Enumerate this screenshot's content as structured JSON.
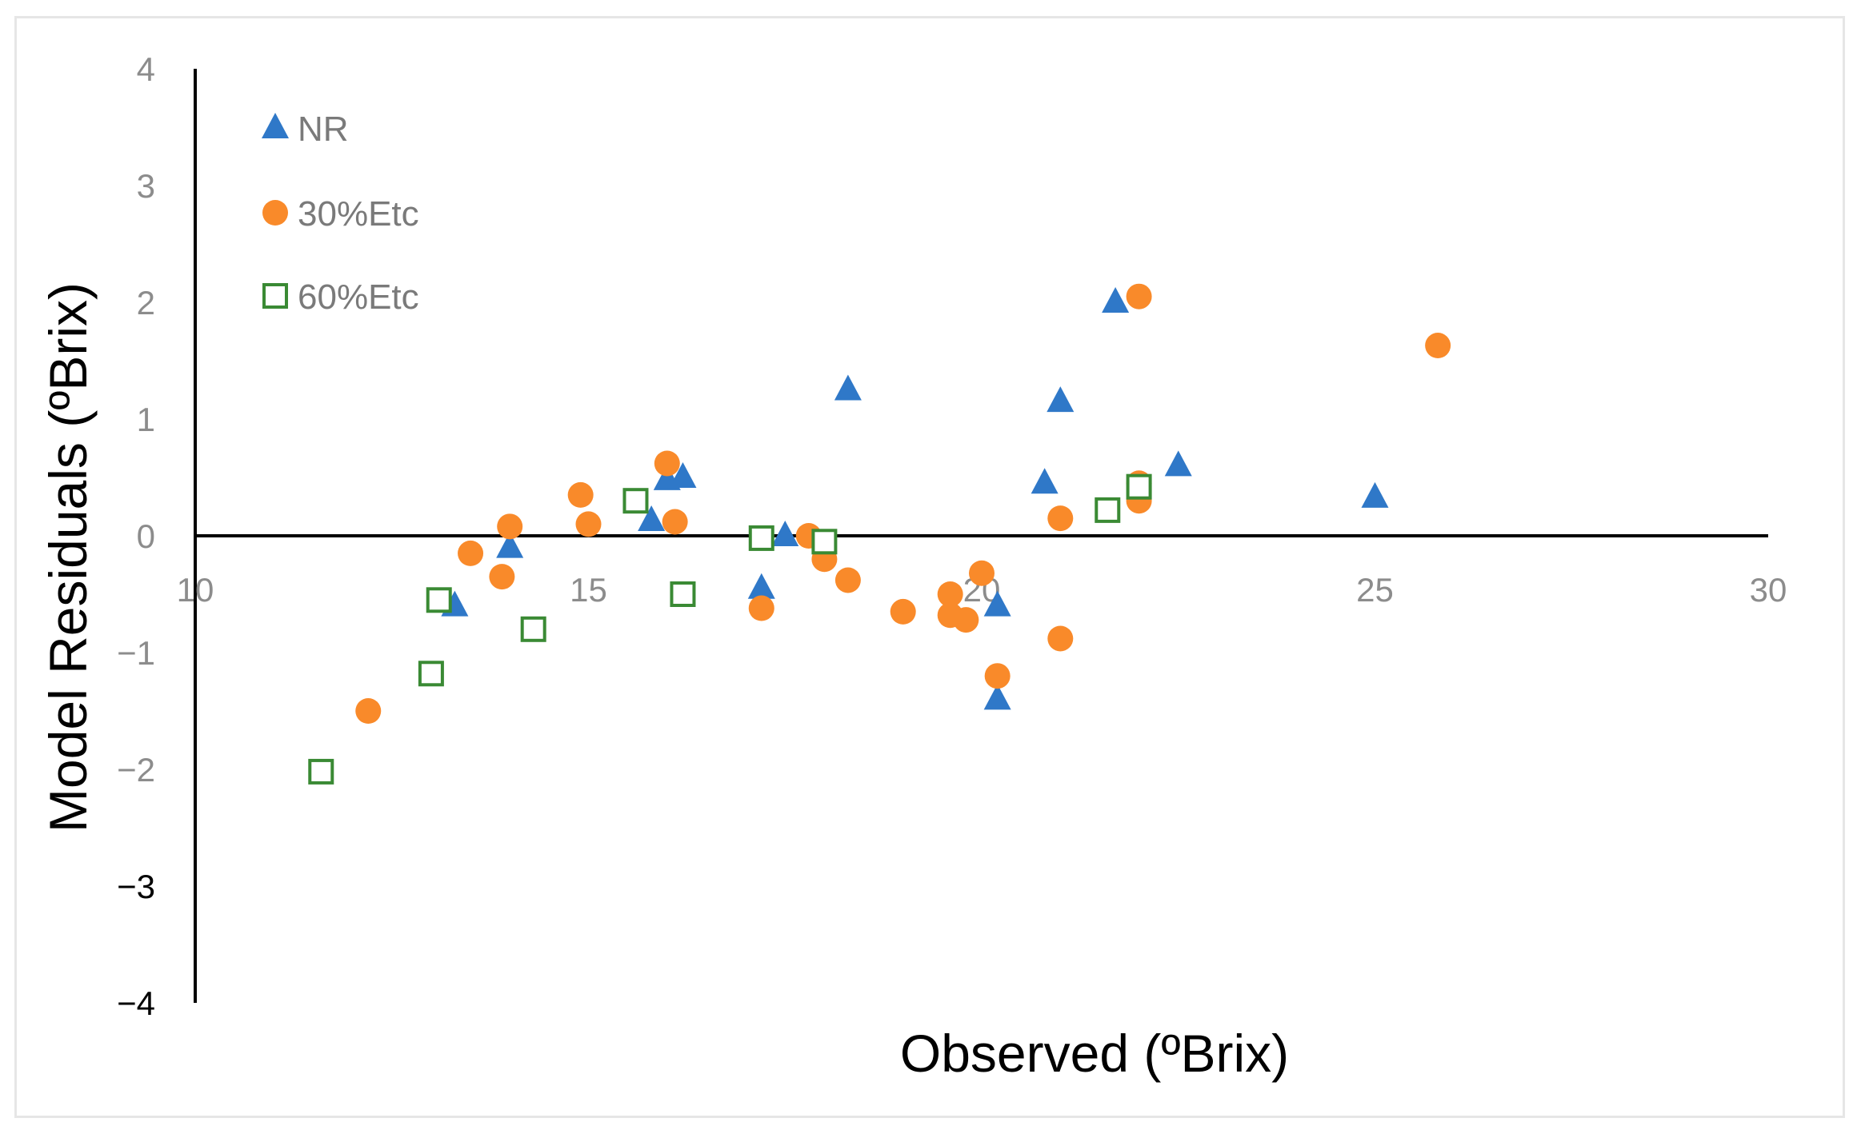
{
  "chart_data": {
    "type": "scatter",
    "title": "",
    "xlabel": "Observed (ºBrix)",
    "ylabel": "Model Residuals (ºBrix)",
    "xlim": [
      10,
      30
    ],
    "ylim": [
      -4,
      4
    ],
    "x_ticks": [
      "10",
      "15",
      "20",
      "25",
      "30"
    ],
    "y_ticks": [
      "4",
      "3",
      "2",
      "1",
      "0",
      "−1",
      "−2",
      "−3",
      "−4"
    ],
    "grid": false,
    "legend_position": "top-left",
    "series": [
      {
        "name": "NR",
        "marker": "triangle",
        "color": "#2f78c8",
        "points": [
          [
            13.3,
            -0.6
          ],
          [
            14.0,
            -0.1
          ],
          [
            15.8,
            0.13
          ],
          [
            16.0,
            0.48
          ],
          [
            16.2,
            0.5
          ],
          [
            17.2,
            -0.45
          ],
          [
            17.5,
            0.0
          ],
          [
            18.3,
            1.25
          ],
          [
            20.2,
            -0.6
          ],
          [
            20.2,
            -1.4
          ],
          [
            20.8,
            0.45
          ],
          [
            21.0,
            1.15
          ],
          [
            21.7,
            2.0
          ],
          [
            22.5,
            0.6
          ],
          [
            25.0,
            0.33
          ]
        ]
      },
      {
        "name": "30%Etc",
        "marker": "circle",
        "color": "#f98a2a",
        "points": [
          [
            12.2,
            -1.5
          ],
          [
            13.5,
            -0.15
          ],
          [
            13.9,
            -0.35
          ],
          [
            14.0,
            0.08
          ],
          [
            14.9,
            0.35
          ],
          [
            15.0,
            0.1
          ],
          [
            16.0,
            0.62
          ],
          [
            16.1,
            0.12
          ],
          [
            17.2,
            -0.62
          ],
          [
            17.8,
            0.0
          ],
          [
            18.0,
            -0.2
          ],
          [
            18.3,
            -0.38
          ],
          [
            19.0,
            -0.65
          ],
          [
            19.6,
            -0.5
          ],
          [
            19.6,
            -0.68
          ],
          [
            19.8,
            -0.72
          ],
          [
            20.0,
            -0.32
          ],
          [
            20.2,
            -1.2
          ],
          [
            21.0,
            0.15
          ],
          [
            21.0,
            -0.88
          ],
          [
            22.0,
            0.45
          ],
          [
            22.0,
            0.3
          ],
          [
            22.0,
            2.05
          ],
          [
            25.8,
            1.63
          ]
        ]
      },
      {
        "name": "60%Etc",
        "marker": "square-open",
        "color": "#3a8a34",
        "points": [
          [
            11.6,
            -2.02
          ],
          [
            13.0,
            -1.18
          ],
          [
            13.1,
            -0.55
          ],
          [
            14.3,
            -0.8
          ],
          [
            15.6,
            0.3
          ],
          [
            16.2,
            -0.5
          ],
          [
            17.2,
            -0.02
          ],
          [
            18.0,
            -0.05
          ],
          [
            21.6,
            0.22
          ],
          [
            22.0,
            0.42
          ]
        ]
      }
    ]
  }
}
